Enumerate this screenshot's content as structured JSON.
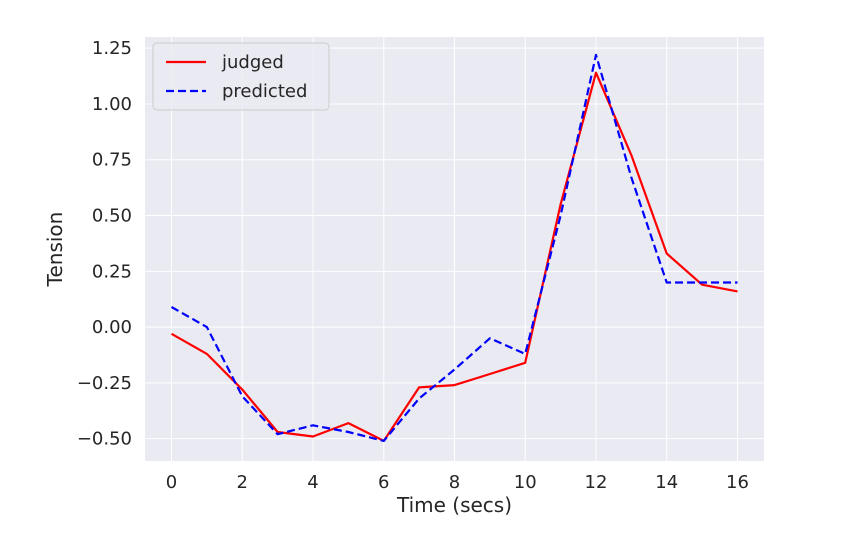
{
  "chart_data": {
    "type": "line",
    "title": "",
    "xlabel": "Time (secs)",
    "ylabel": "Tension",
    "xlim": [
      -0.75,
      16.75
    ],
    "ylim": [
      -0.6,
      1.3
    ],
    "xticks": [
      0,
      2,
      4,
      6,
      8,
      10,
      12,
      14,
      16
    ],
    "xtick_labels": [
      "0",
      "2",
      "4",
      "6",
      "8",
      "10",
      "12",
      "14",
      "16"
    ],
    "yticks": [
      -0.5,
      -0.25,
      0.0,
      0.25,
      0.5,
      0.75,
      1.0,
      1.25
    ],
    "ytick_labels": [
      "−0.50",
      "−0.25",
      "0.00",
      "0.25",
      "0.50",
      "0.75",
      "1.00",
      "1.25"
    ],
    "grid": true,
    "legend_position": "top-left",
    "x": [
      0,
      1,
      2,
      3,
      4,
      5,
      6,
      7,
      8,
      9,
      10,
      11,
      12,
      13,
      14,
      15,
      16
    ],
    "series": [
      {
        "name": "judged",
        "color": "#ff0000",
        "style": "solid",
        "values": [
          -0.03,
          -0.12,
          -0.28,
          -0.47,
          -0.49,
          -0.43,
          -0.51,
          -0.27,
          -0.26,
          -0.21,
          -0.16,
          0.55,
          1.14,
          0.77,
          0.33,
          0.19,
          0.16
        ]
      },
      {
        "name": "predicted",
        "color": "#0000ff",
        "style": "dashed",
        "values": [
          0.09,
          0.0,
          -0.31,
          -0.48,
          -0.44,
          -0.47,
          -0.51,
          -0.32,
          -0.19,
          -0.05,
          -0.12,
          0.5,
          1.22,
          0.67,
          0.2,
          0.2,
          0.2
        ]
      }
    ],
    "colors": {
      "plot_background": "#eaeaf2",
      "grid": "#ffffff",
      "text": "#262626"
    }
  }
}
